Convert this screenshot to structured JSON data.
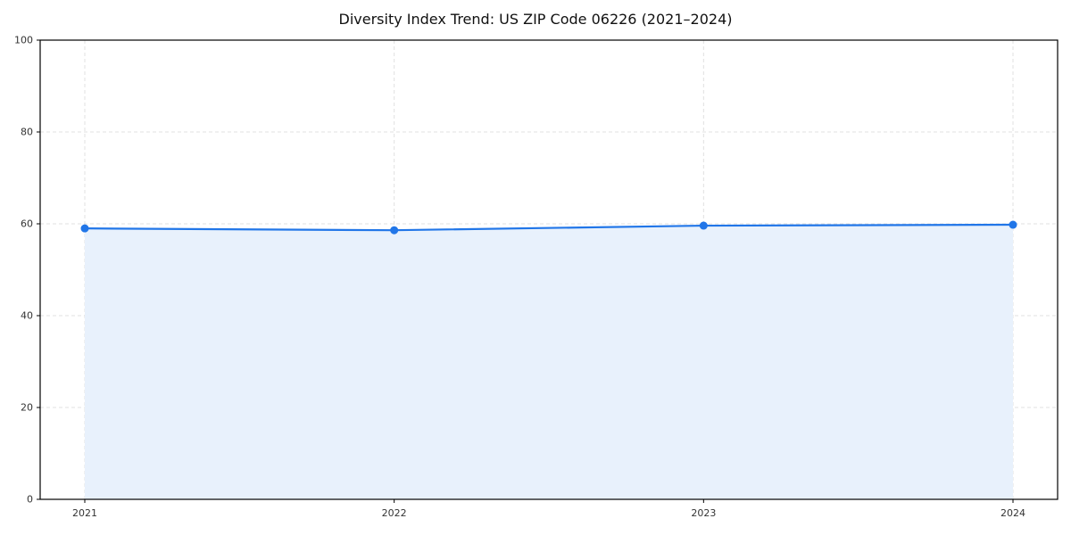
{
  "page": {
    "title": "Diversity Index Trend: US ZIP Code 06226 (2021–2024)"
  },
  "chart_data": {
    "type": "line",
    "title": "Diversity Index Trend: US ZIP Code 06226 (2021–2024)",
    "x": [
      "2021",
      "2022",
      "2023",
      "2024"
    ],
    "series": [
      {
        "name": "Diversity Index",
        "values": [
          59.0,
          58.6,
          59.6,
          59.8
        ]
      }
    ],
    "xlabel": "",
    "ylabel": "",
    "ylim": [
      0,
      100
    ],
    "yticks": [
      0,
      20,
      40,
      60,
      80,
      100
    ],
    "grid": true,
    "grid_style": "dashed",
    "legend_position": "none",
    "area_fill": true,
    "colors": {
      "line": "#2176e8",
      "marker": "#2176e8",
      "area": "#e8f1fc",
      "gridline": "#e0e0e0",
      "axis": "#000000",
      "tick_text": "#333333",
      "background": "#ffffff"
    }
  }
}
